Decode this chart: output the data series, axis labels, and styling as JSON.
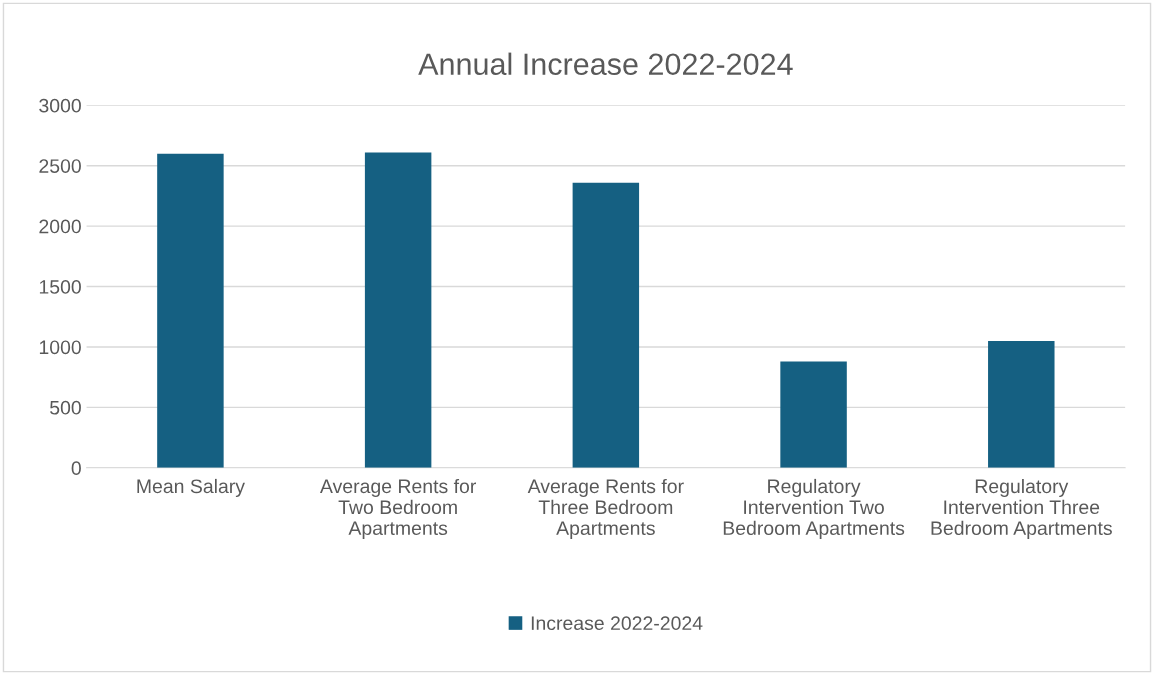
{
  "chart_data": {
    "type": "bar",
    "title": "Annual Increase 2022-2024",
    "categories": [
      "Mean Salary",
      "Average Rents for Two Bedroom Apartments",
      "Average Rents for Three Bedroom Apartments",
      "Regulatory Intervention Two Bedroom Apartments",
      "Regulatory Intervention Three Bedroom Apartments"
    ],
    "series": [
      {
        "name": "Increase 2022-2024",
        "color": "#156082",
        "values": [
          2600,
          2610,
          2360,
          880,
          1050
        ]
      }
    ],
    "ylim": [
      0,
      3000
    ],
    "yticks": [
      0,
      500,
      1000,
      1500,
      2000,
      2500,
      3000
    ],
    "grid": "y",
    "legend": "bottom"
  }
}
